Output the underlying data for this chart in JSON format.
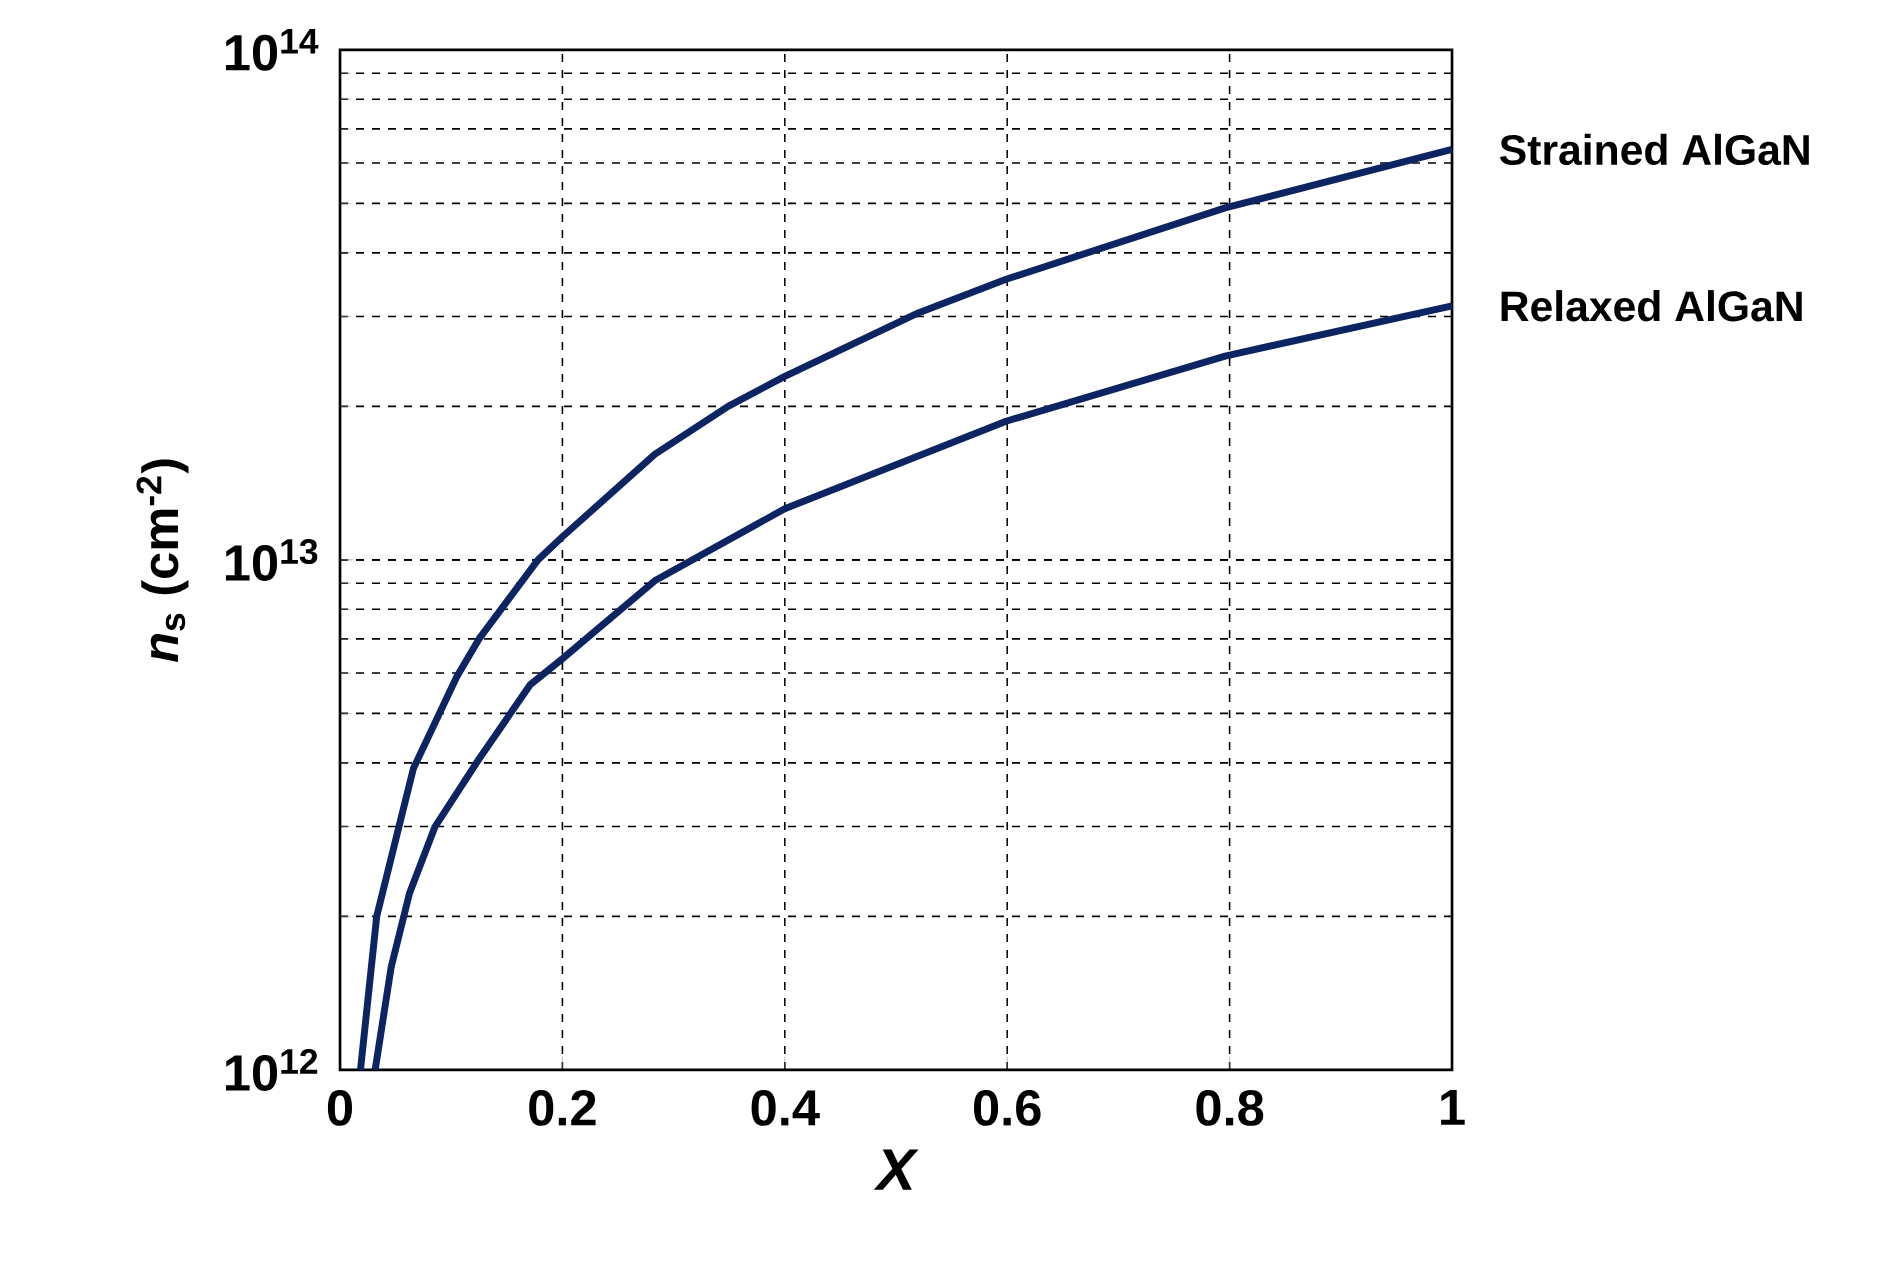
{
  "chart_data": {
    "type": "line",
    "xlabel": "X",
    "ylabel": "*n*$_{s}$ (cm$^{-2}$)",
    "log": "y",
    "grid": true,
    "marker": "none",
    "line_style": "solid",
    "xlim": [
      0,
      1
    ],
    "ylim": [
      1000000000000.0,
      100000000000000.0
    ],
    "xticks": [
      0,
      0.2,
      0.4,
      0.6,
      0.8,
      1
    ],
    "yticks": [
      {
        "value": 1000000000000.0,
        "label": "10$^{12}$"
      },
      {
        "value": 10000000000000.0,
        "label": "10$^{13}$"
      },
      {
        "value": 100000000000000.0,
        "label": "10$^{14}$"
      }
    ],
    "series": [
      {
        "name": "Strained AlGaN",
        "color": "#0d2463",
        "x": [
          0.0184,
          0.033,
          0.053,
          0.066,
          0.105,
          0.125,
          0.178,
          0.2,
          0.283,
          0.349,
          0.4,
          0.52,
          0.599,
          0.796,
          1
        ],
        "values": [
          1000000000000.0,
          2000000000000.0,
          3000000000000.0,
          3900000000000.0,
          5900000000000.0,
          7000000000000.0,
          10000000000000.0,
          11100000000000.0,
          16100000000000.0,
          20000000000000.0,
          22900000000000.0,
          30500000000000.0,
          35500000000000.0,
          49000000000000.0,
          63800000000000.0
        ]
      },
      {
        "name": "Relaxed AlGaN",
        "color": "#0d2463",
        "x": [
          0.0316,
          0.046,
          0.0625,
          0.0855,
          0.125,
          0.171,
          0.2,
          0.283,
          0.4,
          0.599,
          0.796,
          1
        ],
        "values": [
          1000000000000.0,
          1590000000000.0,
          2220000000000.0,
          3000000000000.0,
          4070000000000.0,
          5690000000000.0,
          6400000000000.0,
          9100000000000.0,
          12600000000000.0,
          18700000000000.0,
          25100000000000.0,
          31500000000000.0
        ]
      }
    ]
  }
}
